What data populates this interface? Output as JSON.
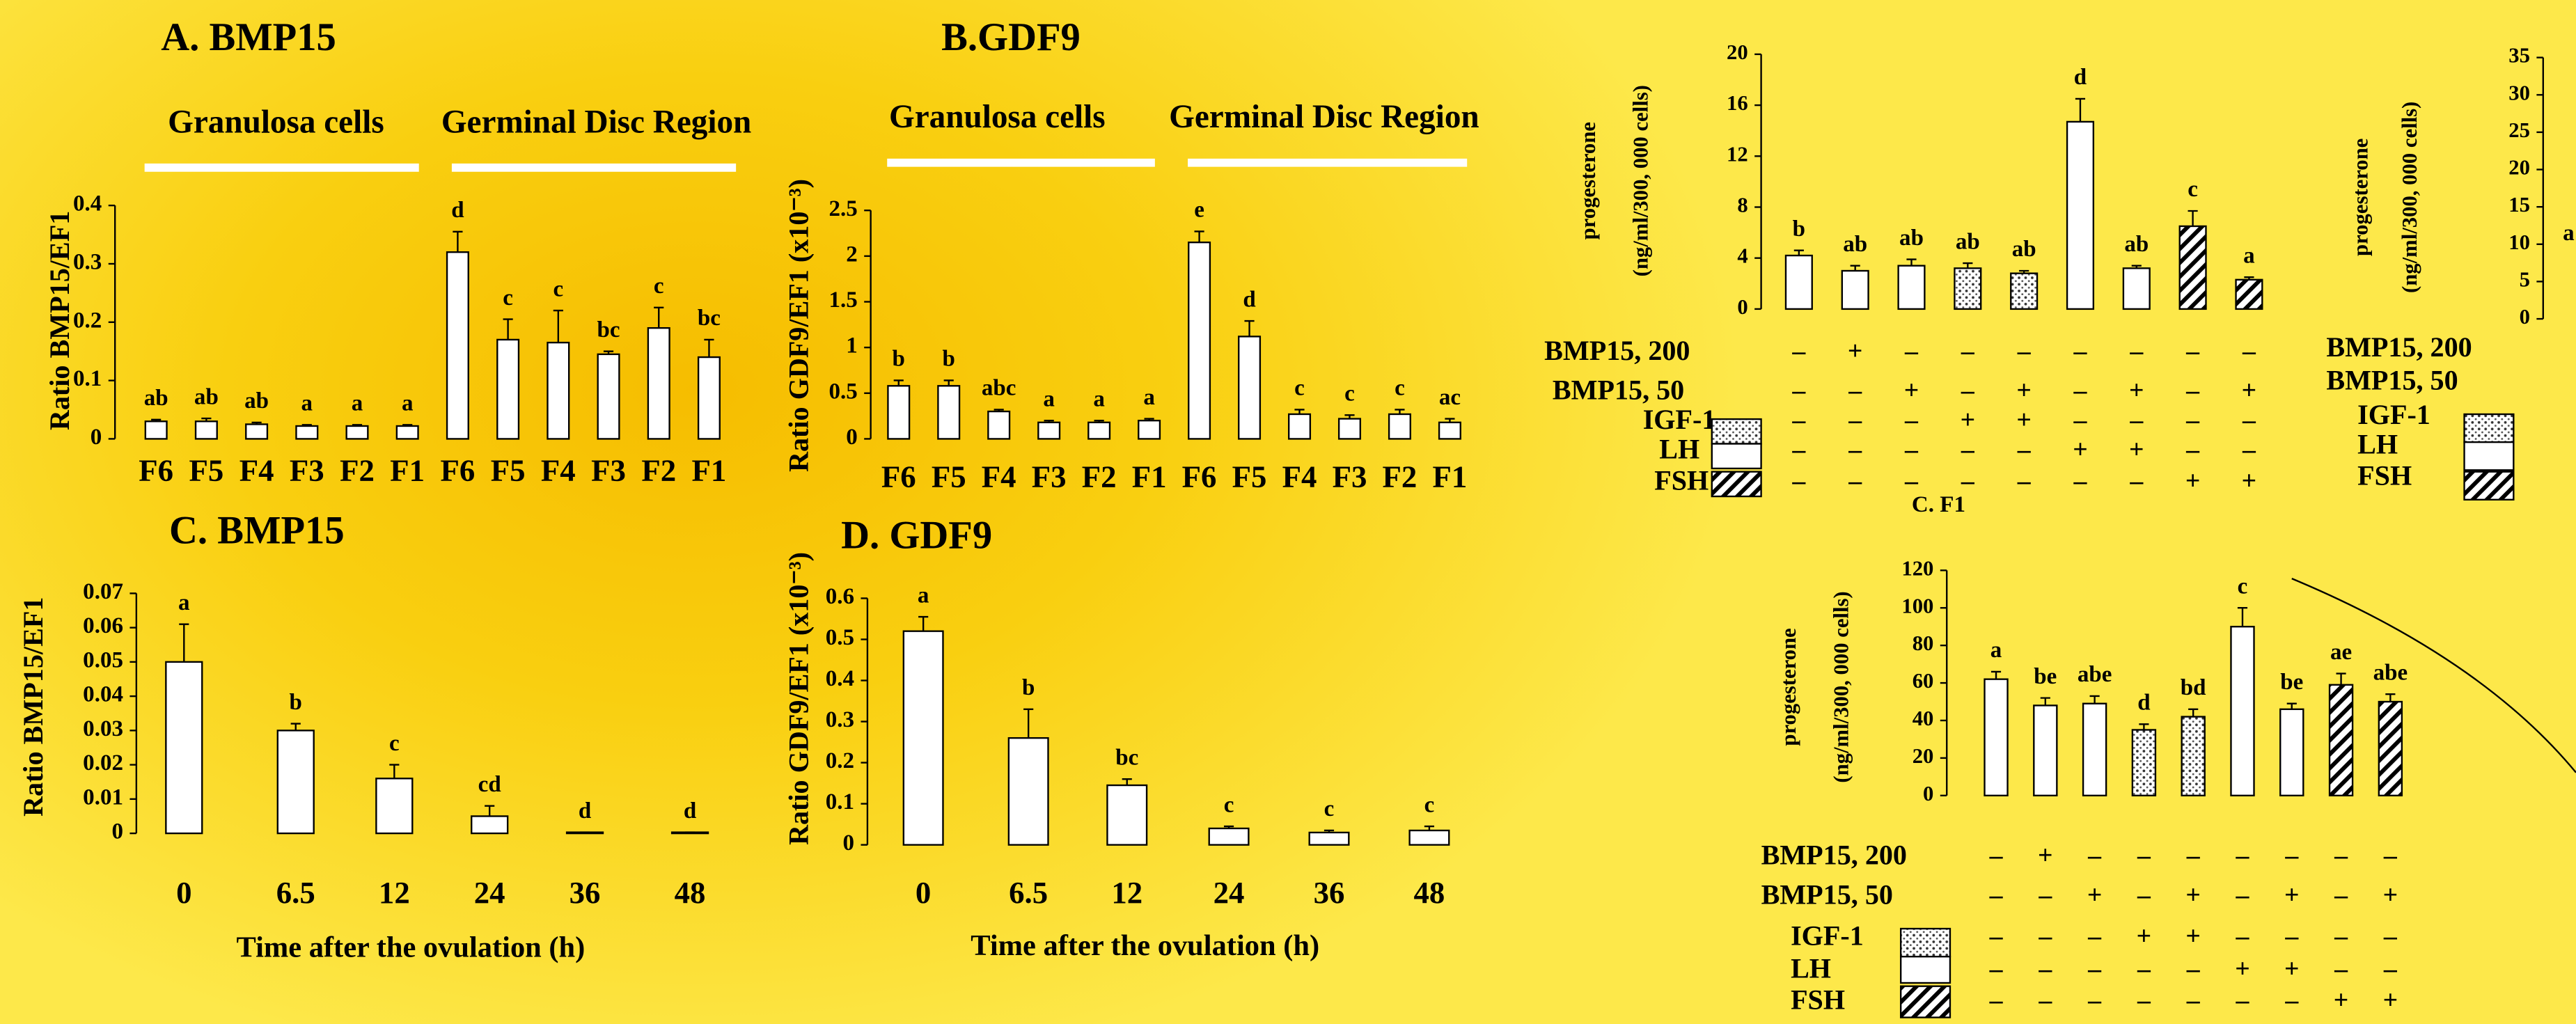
{
  "chart_data": [
    {
      "type": "bar",
      "title": "A. BMP15",
      "ylabel": [
        "Ratio BMP15/EF1"
      ],
      "groups": [
        "Granulosa cells",
        "Germinal Disc Region"
      ],
      "categories": [
        "F6",
        "F5",
        "F4",
        "F3",
        "F2",
        "F1",
        "F6",
        "F5",
        "F4",
        "F3",
        "F2",
        "F1"
      ],
      "values": [
        0.03,
        0.03,
        0.025,
        0.022,
        0.022,
        0.022,
        0.32,
        0.17,
        0.165,
        0.145,
        0.19,
        0.14
      ],
      "errors": [
        0.003,
        0.005,
        0.003,
        0.002,
        0.002,
        0.002,
        0.035,
        0.035,
        0.055,
        0.005,
        0.035,
        0.03
      ],
      "annotations": [
        "ab",
        "ab",
        "ab",
        "a",
        "a",
        "a",
        "d",
        "c",
        "c",
        "bc",
        "c",
        "bc"
      ],
      "ylim": [
        0,
        0.4
      ],
      "yticks": [
        0,
        0.1,
        0.2,
        0.3,
        0.4
      ]
    },
    {
      "type": "bar",
      "title": "B.GDF9",
      "ylabel": [
        "Ratio GDF9/EF1 (x10⁻³)"
      ],
      "groups": [
        "Granulosa cells",
        "Germinal Disc Region"
      ],
      "categories": [
        "F6",
        "F5",
        "F4",
        "F3",
        "F2",
        "F1",
        "F6",
        "F5",
        "F4",
        "F3",
        "F2",
        "F1"
      ],
      "values": [
        0.58,
        0.58,
        0.3,
        0.18,
        0.18,
        0.2,
        2.15,
        1.12,
        0.27,
        0.22,
        0.27,
        0.18
      ],
      "errors": [
        0.06,
        0.06,
        0.02,
        0.02,
        0.02,
        0.02,
        0.12,
        0.17,
        0.05,
        0.04,
        0.05,
        0.04
      ],
      "annotations": [
        "b",
        "b",
        "abc",
        "a",
        "a",
        "a",
        "e",
        "d",
        "c",
        "c",
        "c",
        "ac"
      ],
      "ylim": [
        0,
        2.5
      ],
      "yticks": [
        0,
        0.5,
        1,
        1.5,
        2,
        2.5
      ]
    },
    {
      "type": "bar",
      "title": "C. BMP15",
      "ylabel": [
        "Ratio BMP15/EF1"
      ],
      "xlabel": "Time after the ovulation (h)",
      "categories": [
        "0",
        "6.5",
        "12",
        "24",
        "36",
        "48"
      ],
      "values": [
        0.05,
        0.03,
        0.016,
        0.005,
        0.0003,
        0.0003
      ],
      "errors": [
        0.011,
        0.002,
        0.004,
        0.003,
        0,
        0
      ],
      "annotations": [
        "a",
        "b",
        "c",
        "cd",
        "d",
        "d"
      ],
      "ylim": [
        0,
        0.07
      ],
      "yticks": [
        0,
        0.01,
        0.02,
        0.03,
        0.04,
        0.05,
        0.06,
        0.07
      ]
    },
    {
      "type": "bar",
      "title": "D. GDF9",
      "ylabel": [
        "Ratio GDF9/EF1 (x10⁻³)"
      ],
      "xlabel": "Time after the ovulation (h)",
      "categories": [
        "0",
        "6.5",
        "12",
        "24",
        "36",
        "48"
      ],
      "values": [
        0.52,
        0.26,
        0.145,
        0.04,
        0.03,
        0.035
      ],
      "errors": [
        0.035,
        0.07,
        0.015,
        0.005,
        0.005,
        0.01
      ],
      "annotations": [
        "a",
        "b",
        "bc",
        "c",
        "c",
        "c"
      ],
      "ylim": [
        0,
        0.6
      ],
      "yticks": [
        0,
        0.1,
        0.2,
        0.3,
        0.4,
        0.5,
        0.6
      ]
    },
    {
      "type": "bar",
      "title": "C. F1",
      "ylabel": [
        "progesterone",
        "(ng/ml/300, 000 cells)"
      ],
      "categories": [
        null,
        null,
        null,
        null,
        null,
        null,
        null,
        null,
        null
      ],
      "values": [
        4.2,
        3.0,
        3.4,
        3.2,
        2.8,
        14.7,
        3.2,
        6.5,
        2.3
      ],
      "errors": [
        0.4,
        0.4,
        0.5,
        0.4,
        0.2,
        1.8,
        0.2,
        1.2,
        0.2
      ],
      "annotations": [
        "b",
        "ab",
        "ab",
        "ab",
        "ab",
        "d",
        "ab",
        "c",
        "a"
      ],
      "bar_patterns": [
        "white",
        "white",
        "white",
        "dots",
        "dots",
        "white",
        "white",
        "hatch",
        "hatch"
      ],
      "treatments": [
        {
          "name": "BMP15, 200",
          "marks": [
            "–",
            "+",
            "–",
            "–",
            "–",
            "–",
            "–",
            "–",
            "–"
          ]
        },
        {
          "name": "BMP15, 50",
          "marks": [
            "–",
            "–",
            "+",
            "–",
            "+",
            "–",
            "+",
            "–",
            "+"
          ]
        },
        {
          "name": "IGF-1",
          "marks": [
            "–",
            "–",
            "–",
            "+",
            "+",
            "–",
            "–",
            "–",
            "–"
          ]
        },
        {
          "name": "LH",
          "marks": [
            "–",
            "–",
            "–",
            "–",
            "–",
            "+",
            "+",
            "–",
            "–"
          ]
        },
        {
          "name": "FSH",
          "marks": [
            "–",
            "–",
            "–",
            "–",
            "–",
            "–",
            "–",
            "+",
            "+"
          ]
        }
      ],
      "legend": [
        "dots",
        "white",
        "hatch"
      ],
      "ylim": [
        0,
        20
      ],
      "yticks": [
        0,
        4,
        8,
        12,
        16,
        20
      ]
    },
    {
      "type": "bar",
      "ylabel": [
        "progesterone",
        "(ng/ml/300, 000 cells)"
      ],
      "categories": [
        null,
        null,
        null,
        null,
        null,
        null,
        null,
        null,
        null
      ],
      "values": [
        62,
        48,
        49,
        35,
        42,
        90,
        46,
        59,
        50
      ],
      "errors": [
        4,
        4,
        4,
        3,
        4,
        10,
        3,
        6,
        4
      ],
      "annotations": [
        "a",
        "be",
        "abe",
        "d",
        "bd",
        "c",
        "be",
        "ae",
        "abe"
      ],
      "bar_patterns": [
        "white",
        "white",
        "white",
        "dots",
        "dots",
        "white",
        "white",
        "hatch",
        "hatch"
      ],
      "treatments": [
        {
          "name": "BMP15, 200",
          "marks": [
            "–",
            "+",
            "–",
            "–",
            "–",
            "–",
            "–",
            "–",
            "–"
          ]
        },
        {
          "name": "BMP15, 50",
          "marks": [
            "–",
            "–",
            "+",
            "–",
            "+",
            "–",
            "+",
            "–",
            "+"
          ]
        },
        {
          "name": "IGF-1",
          "marks": [
            "–",
            "–",
            "–",
            "+",
            "+",
            "–",
            "–",
            "–",
            "–"
          ]
        },
        {
          "name": "LH",
          "marks": [
            "–",
            "–",
            "–",
            "–",
            "–",
            "+",
            "+",
            "–",
            "–"
          ]
        },
        {
          "name": "FSH",
          "marks": [
            "–",
            "–",
            "–",
            "–",
            "–",
            "–",
            "–",
            "+",
            "+"
          ]
        }
      ],
      "legend": [
        "dots",
        "white",
        "hatch"
      ],
      "ylim": [
        0,
        120
      ],
      "yticks": [
        0,
        20,
        40,
        60,
        80,
        100,
        120
      ]
    },
    {
      "type": "bar",
      "ylabel": [
        "progesterone",
        "(ng/ml/300, 000 cells)"
      ],
      "extra_labels": [
        "a"
      ],
      "treatments": [
        {
          "name": "BMP15, 200"
        },
        {
          "name": "BMP15, 50"
        },
        {
          "name": "IGF-1"
        },
        {
          "name": "LH"
        },
        {
          "name": "FSH"
        }
      ],
      "legend": [
        "dots",
        "white",
        "hatch"
      ],
      "ylim": [
        0,
        35
      ],
      "yticks": [
        0,
        5,
        10,
        15,
        20,
        25,
        30,
        35
      ]
    }
  ]
}
